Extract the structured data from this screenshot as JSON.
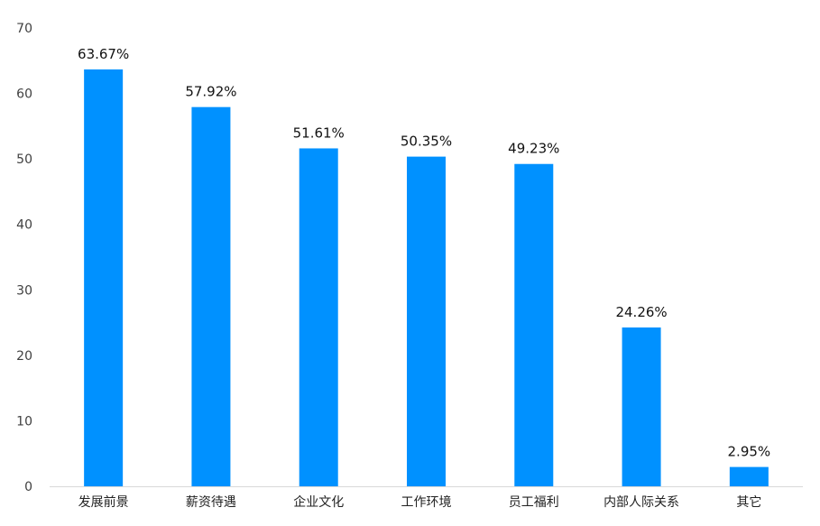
{
  "chart_data": {
    "type": "bar",
    "title": "",
    "xlabel": "",
    "ylabel": "",
    "categories": [
      "发展前景",
      "薪资待遇",
      "企业文化",
      "工作环境",
      "员工福利",
      "内部人际关系",
      "其它"
    ],
    "values": [
      63.67,
      57.92,
      51.61,
      50.35,
      49.23,
      24.26,
      2.95
    ],
    "data_labels": [
      "63.67%",
      "57.92%",
      "51.61%",
      "50.35%",
      "49.23%",
      "24.26%",
      "2.95%"
    ],
    "ylim": [
      0,
      70
    ],
    "yticks": [
      0,
      10,
      20,
      30,
      40,
      50,
      60,
      70
    ],
    "grid": false,
    "legend": "none",
    "colors": {
      "bar": "#0091FF",
      "axis": "#D9D9D9"
    }
  }
}
